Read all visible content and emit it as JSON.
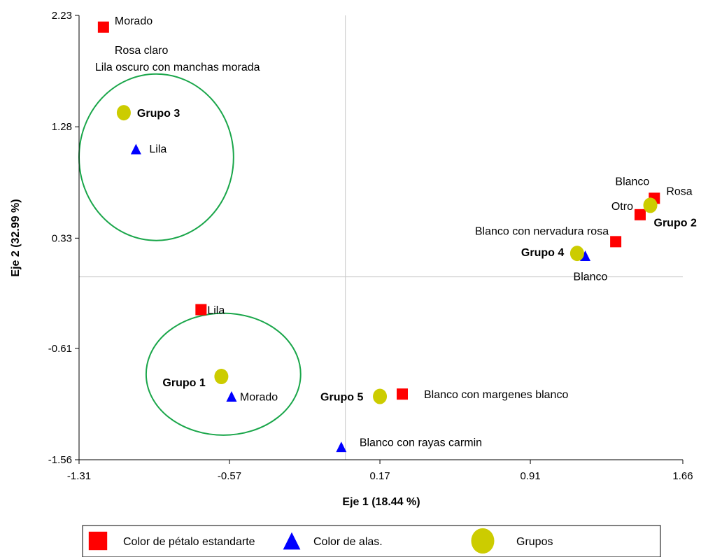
{
  "chart_data": {
    "type": "scatter",
    "xlabel": "Eje 1 (18.44 %)",
    "ylabel": "Eje 2 (32.99 %)",
    "xlim": [
      -1.31,
      1.66
    ],
    "ylim": [
      -1.56,
      2.23
    ],
    "xticks": [
      "-1.31",
      "-0.57",
      "0.17",
      "0.91",
      "1.66"
    ],
    "yticks": [
      "-1.56",
      "-0.61",
      "0.33",
      "1.28",
      "2.23"
    ],
    "xtick_values": [
      -1.31,
      -0.57,
      0.17,
      0.91,
      1.66
    ],
    "ytick_values": [
      -1.56,
      -0.61,
      0.33,
      1.28,
      2.23
    ],
    "reference_lines": {
      "x": 0.0,
      "y": 0.0
    },
    "grid": false,
    "legend_position": "bottom",
    "colors": {
      "square": "#ff0000",
      "triangle": "#0000ff",
      "circle": "#cccc00",
      "ellipse": "#1aa64a"
    },
    "series": [
      {
        "name": "Color de pétalo estandarte",
        "marker": "square",
        "points": [
          {
            "label": "Morado",
            "x": -1.19,
            "y": 2.13
          },
          {
            "label": "Rosa claro",
            "x": -1.19,
            "y": 2.13
          },
          {
            "label": "Lila oscuro con manchas morada",
            "x": -1.19,
            "y": 2.13
          },
          {
            "label": "Rosa",
            "x": 1.52,
            "y": 0.67
          },
          {
            "label": "Blanco",
            "x": 1.52,
            "y": 0.67
          },
          {
            "label": "Otro",
            "x": 1.45,
            "y": 0.53
          },
          {
            "label": "Blanco con nervadura rosa",
            "x": 1.33,
            "y": 0.3
          },
          {
            "label": "Lila",
            "x": -0.71,
            "y": -0.28
          },
          {
            "label": "Blanco con margenes blanco",
            "x": 0.28,
            "y": -1.0
          }
        ]
      },
      {
        "name": "Color de alas.",
        "marker": "triangle",
        "points": [
          {
            "label": "Lila",
            "x": -1.03,
            "y": 1.09
          },
          {
            "label": "Blanco",
            "x": 1.18,
            "y": 0.18
          },
          {
            "label": "Morado",
            "x": -0.56,
            "y": -1.02
          },
          {
            "label": "Blanco con rayas carmin",
            "x": -0.02,
            "y": -1.45
          }
        ]
      },
      {
        "name": "Grupos",
        "marker": "circle",
        "points": [
          {
            "label": "Grupo 3",
            "x": -1.09,
            "y": 1.4
          },
          {
            "label": "Grupo 2",
            "x": 1.5,
            "y": 0.61
          },
          {
            "label": "Grupo 4",
            "x": 1.14,
            "y": 0.2
          },
          {
            "label": "Grupo 1",
            "x": -0.61,
            "y": -0.85
          },
          {
            "label": "Grupo 5",
            "x": 0.17,
            "y": -1.02
          }
        ]
      }
    ],
    "ellipses": [
      {
        "name": "Grupo 3",
        "cx": -0.93,
        "cy": 1.02,
        "rx": 0.38,
        "ry": 0.71
      },
      {
        "name": "Grupo 1",
        "cx": -0.6,
        "cy": -0.83,
        "rx": 0.38,
        "ry": 0.52
      }
    ],
    "legend": [
      {
        "marker": "square",
        "label": "Color de pétalo estandarte"
      },
      {
        "marker": "triangle",
        "label": "Color de alas."
      },
      {
        "marker": "circle",
        "label": "Grupos"
      }
    ]
  }
}
